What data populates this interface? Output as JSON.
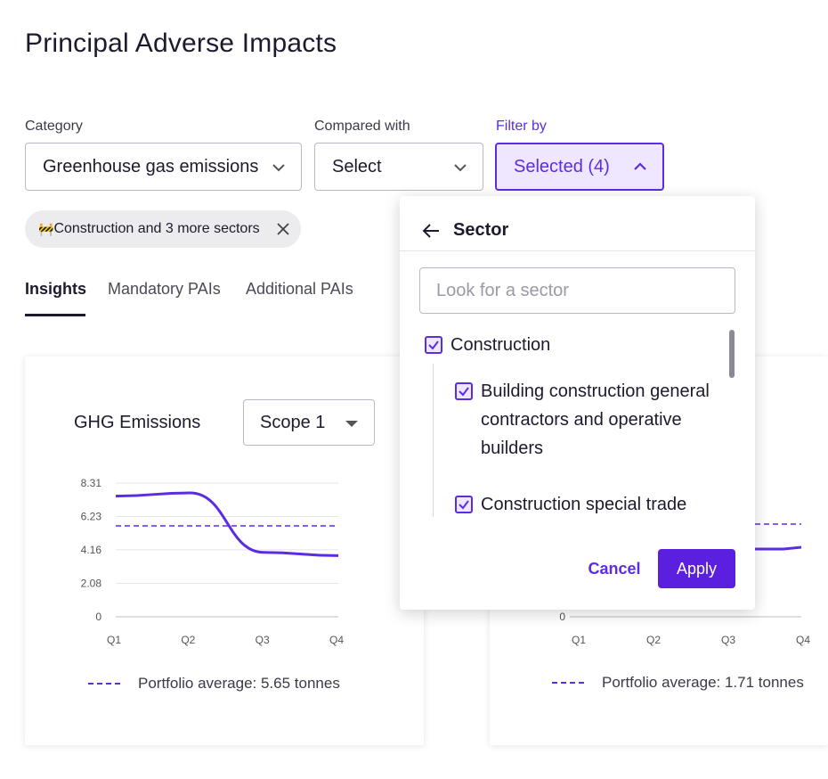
{
  "page": {
    "title": "Principal Adverse Impacts"
  },
  "filters": {
    "category": {
      "label": "Category",
      "value": "Greenhouse gas emissions"
    },
    "compared_with": {
      "label": "Compared with",
      "value": "Select"
    },
    "filter_by": {
      "label": "Filter by",
      "value": "Selected (4)"
    }
  },
  "chip": {
    "emoji": "🚧",
    "text": "Construction and 3 more sectors"
  },
  "tabs": [
    {
      "label": "Insights",
      "active": true
    },
    {
      "label": "Mandatory PAIs",
      "active": false
    },
    {
      "label": "Additional PAIs",
      "active": false
    }
  ],
  "card_left": {
    "title": "GHG Emissions",
    "scope": "Scope 1",
    "legend": "Portfolio average: 5.65 tonnes"
  },
  "card_right": {
    "legend": "Portfolio average: 1.71 tonnes"
  },
  "popover": {
    "title": "Sector",
    "search_placeholder": "Look for a sector",
    "items": [
      {
        "label": "Construction",
        "checked": true,
        "level": 0
      },
      {
        "label_lines": [
          "Building construction general",
          "contractors and operative",
          "builders"
        ],
        "checked": true,
        "level": 1
      },
      {
        "label": "Construction special trade",
        "checked": true,
        "level": 1
      }
    ],
    "cancel_label": "Cancel",
    "apply_label": "Apply"
  },
  "colors": {
    "accent": "#5b2de0",
    "accent_bg": "#efe6ff",
    "apply_bg": "#5b1fe0",
    "text": "#1c1b2e"
  },
  "chart_data": [
    {
      "type": "line",
      "title": "GHG Emissions",
      "categories": [
        "Q1",
        "Q2",
        "Q3",
        "Q4"
      ],
      "yticks": [
        "8.31",
        "6.23",
        "4.16",
        "2.08",
        "0"
      ],
      "ylim": [
        0,
        8.31
      ],
      "series": [
        {
          "values": [
            7.5,
            7.7,
            4.0,
            3.8
          ]
        },
        {
          "name": "Portfolio average: 5.65 tonnes",
          "values": [
            5.65,
            5.65,
            5.65,
            5.65
          ],
          "style": "dashed"
        }
      ],
      "grid": true
    },
    {
      "type": "line",
      "categories": [
        "Q1",
        "Q2",
        "Q3",
        "Q4"
      ],
      "yticks": [
        "0"
      ],
      "series": [
        {
          "name": "Portfolio average: 1.71 tonnes",
          "values": [
            1.71,
            1.71,
            1.71,
            1.71
          ],
          "style": "dashed"
        }
      ]
    }
  ]
}
